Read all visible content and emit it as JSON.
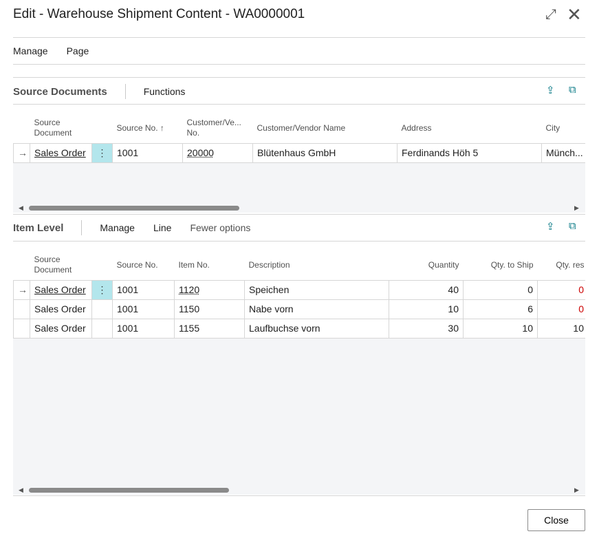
{
  "title": "Edit - Warehouse Shipment Content - WA0000001",
  "window_icons": {
    "expand": "expand-icon",
    "close": "close-icon"
  },
  "menu": [
    "Manage",
    "Page"
  ],
  "source_documents": {
    "heading": "Source Documents",
    "actions": [
      "Functions"
    ],
    "columns": [
      "Source Document",
      "Source No. ↑",
      "Customer/Ve... No.",
      "Customer/Vendor Name",
      "Address",
      "City"
    ],
    "rows": [
      {
        "source_document": "Sales Order",
        "source_no": "1001",
        "customer_no": "20000",
        "name": "Blütenhaus GmbH",
        "address": "Ferdinands Höh 5",
        "city": "Münch..."
      }
    ]
  },
  "item_level": {
    "heading": "Item Level",
    "actions": [
      "Manage",
      "Line",
      "Fewer options"
    ],
    "columns": [
      "Source Document",
      "Source No.",
      "Item No.",
      "Description",
      "Quantity",
      "Qty. to Ship",
      "Qty. res"
    ],
    "rows": [
      {
        "source_document": "Sales Order",
        "source_no": "1001",
        "item_no": "1120",
        "description": "Speichen",
        "quantity": "40",
        "qty_to_ship": "0",
        "qty_res": "0"
      },
      {
        "source_document": "Sales Order",
        "source_no": "1001",
        "item_no": "1150",
        "description": "Nabe vorn",
        "quantity": "10",
        "qty_to_ship": "6",
        "qty_res": "0"
      },
      {
        "source_document": "Sales Order",
        "source_no": "1001",
        "item_no": "1155",
        "description": "Laufbuchse vorn",
        "quantity": "30",
        "qty_to_ship": "10",
        "qty_res": "10"
      }
    ]
  },
  "close_label": "Close",
  "accent": "#0a7a86"
}
